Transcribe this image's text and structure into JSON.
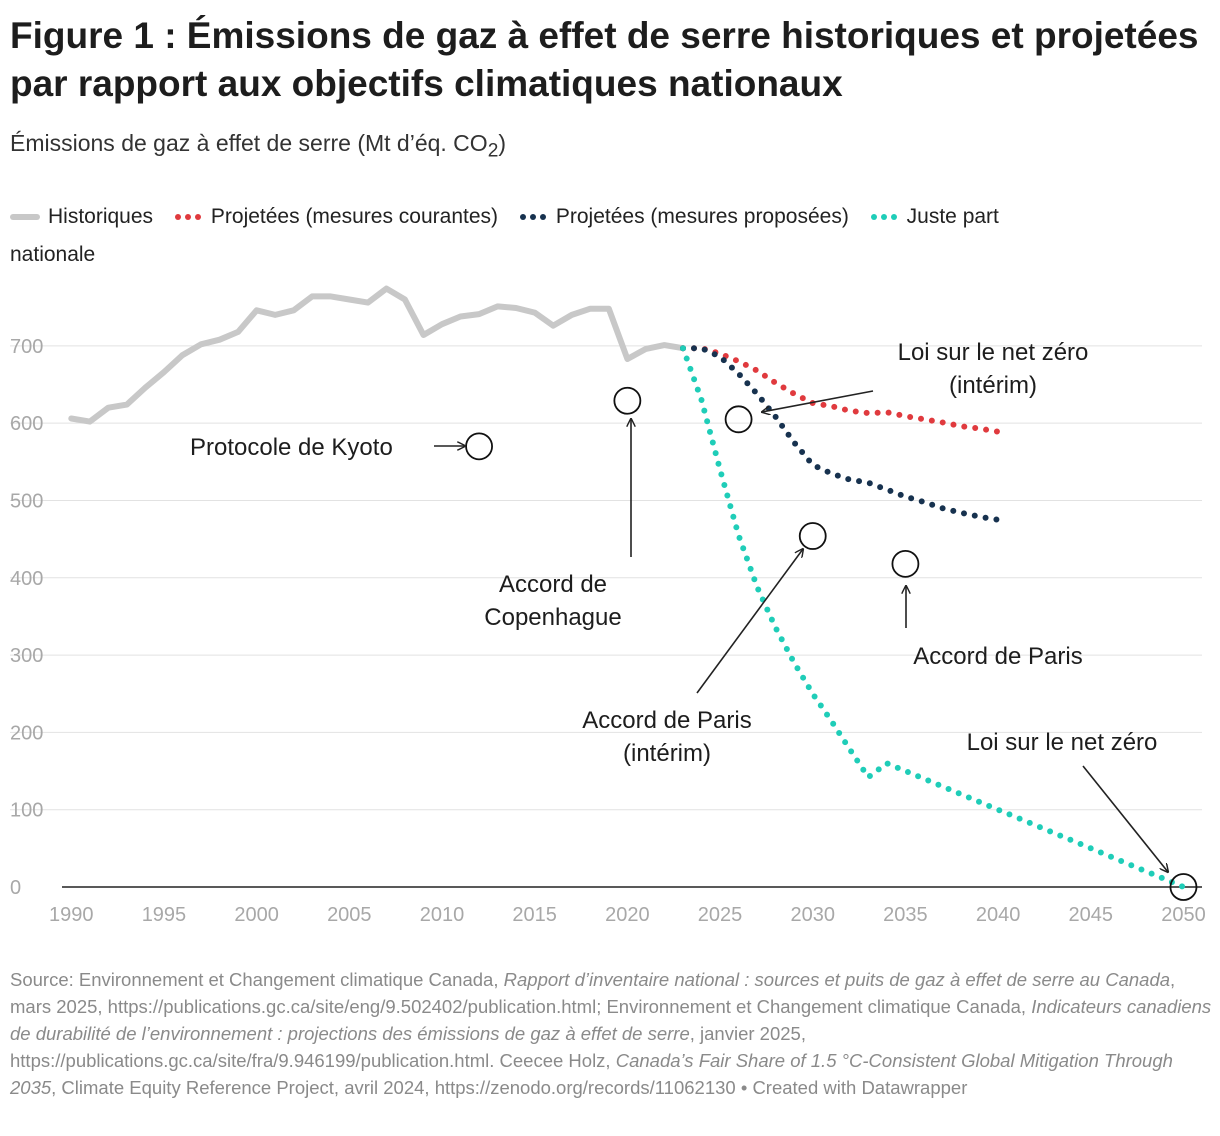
{
  "title": "Figure 1 : Émissions de gaz à effet de serre historiques et projetées par rapport aux objectifs climatiques nationaux",
  "subtitle_main": "Émissions de gaz à effet de serre (Mt d’éq. CO",
  "subtitle_sub": "2",
  "subtitle_end": ")",
  "legend": {
    "historical": "Historiques",
    "current": "Projetées (mesures courantes)",
    "proposed": "Projetées (mesures proposées)",
    "fairshare_1": "Juste part",
    "fairshare_2": "nationale"
  },
  "colors": {
    "historical": "#c8c8c8",
    "current": "#e03a3e",
    "proposed": "#17324f",
    "fairshare": "#1fcdb8",
    "grid": "#e2e2e2",
    "axis_text": "#a8a8a8"
  },
  "chart_data": {
    "type": "line",
    "ylim": [
      0,
      780
    ],
    "xlim": [
      1989.5,
      2051
    ],
    "yticks": [
      0,
      100,
      200,
      300,
      400,
      500,
      600,
      700
    ],
    "xticks": [
      1990,
      1995,
      2000,
      2005,
      2010,
      2015,
      2020,
      2025,
      2030,
      2035,
      2040,
      2045,
      2050
    ],
    "grid": true,
    "legend_position": "top",
    "series": [
      {
        "key": "historical",
        "name": "Historiques",
        "style": "solid",
        "x": [
          1990,
          1991,
          1992,
          1993,
          1994,
          1995,
          1996,
          1997,
          1998,
          1999,
          2000,
          2001,
          2002,
          2003,
          2004,
          2005,
          2006,
          2007,
          2008,
          2009,
          2010,
          2011,
          2012,
          2013,
          2014,
          2015,
          2016,
          2017,
          2018,
          2019,
          2020,
          2021,
          2022,
          2023
        ],
        "y": [
          606,
          602,
          620,
          624,
          646,
          666,
          688,
          702,
          708,
          718,
          746,
          740,
          746,
          764,
          764,
          760,
          756,
          774,
          760,
          714,
          728,
          738,
          741,
          751,
          749,
          743,
          726,
          740,
          748,
          748,
          683,
          696,
          701,
          697
        ]
      },
      {
        "key": "current",
        "name": "Projetées (mesures courantes)",
        "style": "dotted",
        "x": [
          2023,
          2024,
          2025,
          2026,
          2027,
          2028,
          2029,
          2030,
          2031,
          2032,
          2033,
          2034,
          2035,
          2036,
          2037,
          2038,
          2039,
          2040
        ],
        "y": [
          697,
          697,
          690,
          680,
          668,
          652,
          638,
          626,
          622,
          616,
          613,
          614,
          609,
          605,
          601,
          596,
          593,
          589
        ]
      },
      {
        "key": "proposed",
        "name": "Projetées (mesures proposées)",
        "style": "dotted",
        "x": [
          2023,
          2024,
          2025,
          2026,
          2027,
          2028,
          2029,
          2030,
          2031,
          2032,
          2033,
          2034,
          2035,
          2036,
          2037,
          2038,
          2039,
          2040
        ],
        "y": [
          697,
          697,
          686,
          664,
          638,
          608,
          575,
          546,
          535,
          527,
          523,
          514,
          505,
          498,
          490,
          484,
          479,
          475
        ]
      },
      {
        "key": "fairshare",
        "name": "Juste part nationale",
        "style": "dotted",
        "x": [
          2023,
          2024,
          2025,
          2026,
          2027,
          2028,
          2029,
          2030,
          2031,
          2032,
          2033,
          2034,
          2035,
          2040,
          2045,
          2050
        ],
        "y": [
          697,
          630,
          540,
          455,
          388,
          335,
          290,
          250,
          215,
          178,
          142,
          160,
          150,
          100,
          50,
          0
        ]
      }
    ],
    "targets": [
      {
        "key": "kyoto",
        "x": 2012,
        "y": 570
      },
      {
        "key": "copenhagen",
        "x": 2020,
        "y": 629
      },
      {
        "key": "netzero_interim",
        "x": 2026,
        "y": 605
      },
      {
        "key": "paris_interim",
        "x": 2030,
        "y": 454
      },
      {
        "key": "paris",
        "x": 2035,
        "y": 418
      },
      {
        "key": "netzero",
        "x": 2050,
        "y": 0
      }
    ],
    "annotations": {
      "kyoto": "Protocole de Kyoto",
      "copenhagen_1": "Accord de",
      "copenhagen_2": "Copenhague",
      "netzero_interim_1": "Loi sur le net zéro",
      "netzero_interim_2": "(intérim)",
      "paris_interim_1": "Accord de Paris",
      "paris_interim_2": "(intérim)",
      "paris": "Accord de Paris",
      "netzero": "Loi sur le net zéro"
    }
  },
  "source": {
    "p1": "Source: Environnement et Changement climatique Canada, ",
    "i1": "Rapport d’inventaire national : sources et puits de gaz à effet de serre au Canada",
    "p2": ", mars 2025, https://publications.gc.ca/site/eng/9.502402/publication.html; Environnement et Changement climatique Canada, ",
    "i2": "Indicateurs canadiens de durabilité de l’environnement : projections des émissions de gaz à effet de serre",
    "p3": ", janvier 2025, https://publications.gc.ca/site/fra/9.946199/publication.html. Ceecee Holz, ",
    "i3": "Canada’s Fair Share of 1.5 °C-Consistent Global Mitigation Through 2035",
    "p4": ", Climate Equity Reference Project, avril 2024, https://zenodo.org/records/11062130 • Created with Datawrapper"
  }
}
